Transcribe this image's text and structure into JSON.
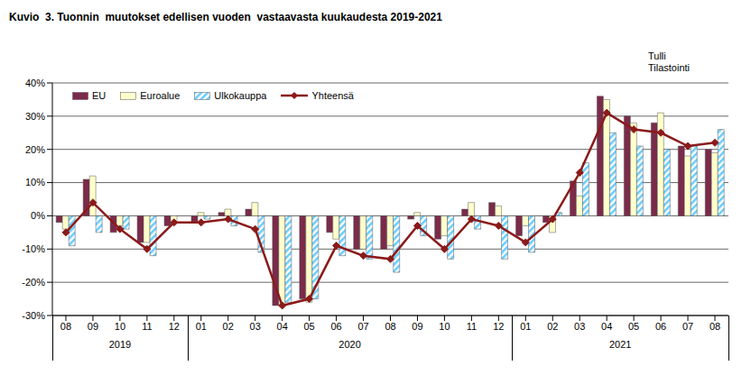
{
  "chart_data": {
    "type": "bar",
    "title": "Kuvio  3. Tuonnin  muutokset edellisen vuoden  vastaavasta kuukaudesta 2019-2021",
    "annotations": [
      "Tulli",
      "Tilastointi"
    ],
    "categories": [
      "08",
      "09",
      "10",
      "11",
      "12",
      "01",
      "02",
      "03",
      "04",
      "05",
      "06",
      "07",
      "08",
      "09",
      "10",
      "11",
      "12",
      "01",
      "02",
      "03",
      "04",
      "05",
      "06",
      "07",
      "08"
    ],
    "year_labels": [
      "2019",
      "2020",
      "2021"
    ],
    "year_spans": [
      5,
      12,
      8
    ],
    "series": [
      {
        "name": "EU",
        "type": "bar",
        "color": "#7b2a4a",
        "values": [
          -2,
          11,
          -5,
          -8,
          -3,
          -2,
          1,
          2,
          -27,
          -25,
          -5,
          -10,
          -10,
          -1,
          -7,
          2,
          4,
          -6,
          -2,
          10.5,
          36,
          30,
          28,
          21,
          20
        ]
      },
      {
        "name": "Euroalue",
        "type": "bar",
        "color": "#ffffcc",
        "values": [
          -4,
          12,
          -3,
          -8,
          -2,
          1,
          2,
          4,
          -27,
          -26,
          -7,
          -10,
          -9,
          1,
          -6,
          4,
          3,
          -3,
          -5,
          6,
          35,
          28,
          31,
          18,
          19
        ]
      },
      {
        "name": "Ulkokauppa",
        "type": "bar",
        "color": "#66ccff",
        "values": [
          -9,
          -5,
          -4,
          -12,
          0,
          -1,
          -3,
          -11,
          -26,
          -25,
          -12,
          -13,
          -17,
          -6,
          -13,
          -4,
          -13,
          -11,
          1,
          16,
          25,
          21,
          20,
          21,
          26
        ]
      },
      {
        "name": "Yhteensä",
        "type": "line",
        "color": "#8b1a1a",
        "marker": "diamond",
        "values": [
          -5,
          4,
          -4,
          -10,
          -2,
          -2,
          -1,
          -4,
          -27,
          -25,
          -9,
          -12,
          -13,
          -3,
          -10,
          -1,
          -3,
          -8,
          -1,
          13,
          31,
          26,
          25,
          21,
          22
        ]
      }
    ],
    "ylim": [
      -30,
      40
    ],
    "yticks": [
      {
        "value": -30,
        "label": "-30%"
      },
      {
        "value": -20,
        "label": "-20%"
      },
      {
        "value": -10,
        "label": "-10%"
      },
      {
        "value": 0,
        "label": "0%"
      },
      {
        "value": 10,
        "label": "10%"
      },
      {
        "value": 20,
        "label": "20%"
      },
      {
        "value": 30,
        "label": "30%"
      },
      {
        "value": 40,
        "label": "40%"
      }
    ],
    "grid": true,
    "legend": "top-left"
  }
}
